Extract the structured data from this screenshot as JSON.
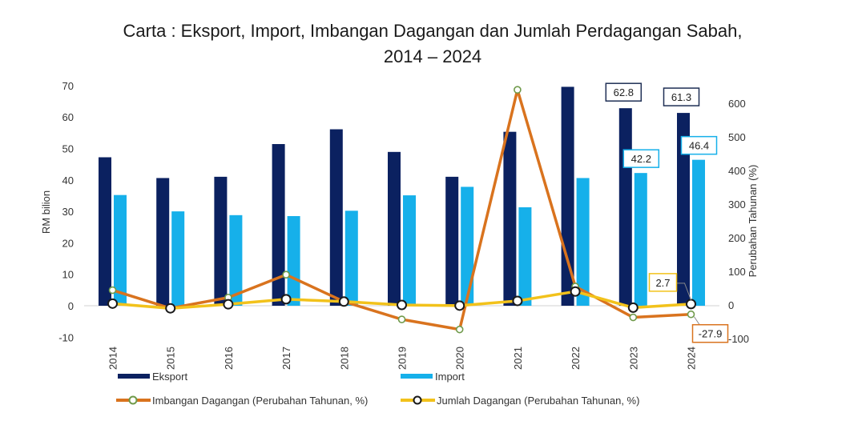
{
  "chart_data": {
    "type": "bar",
    "title": "Carta : Eksport, Import, Imbangan Dagangan dan Jumlah Perdagangan Sabah,",
    "subtitle": "2014 – 2024",
    "categories": [
      "2014",
      "2015",
      "2016",
      "2017",
      "2018",
      "2019",
      "2020",
      "2021",
      "2022",
      "2023",
      "2024"
    ],
    "ylabel": "RM bilion",
    "y2label": "Perubahan Tahunan (%)",
    "ylim": [
      -10,
      70
    ],
    "y2lim": [
      -100,
      650
    ],
    "yticks": [
      "70",
      "60",
      "50",
      "40",
      "30",
      "20",
      "10",
      "0",
      "-10"
    ],
    "y2ticks": [
      "600",
      "500",
      "400",
      "300",
      "200",
      "100",
      "0",
      "-100"
    ],
    "grid": false,
    "legend_position": "bottom",
    "series": [
      {
        "name": "Eksport",
        "kind": "bar",
        "axis": "left",
        "color": "#0b2160",
        "values": [
          47.2,
          40.6,
          41.0,
          51.4,
          56.1,
          48.9,
          41.0,
          55.3,
          69.6,
          62.8,
          61.3
        ],
        "labels": {
          "9": "62.8",
          "10": "61.3"
        }
      },
      {
        "name": "Import",
        "kind": "bar",
        "axis": "left",
        "color": "#16b0ea",
        "values": [
          35.2,
          30.0,
          28.8,
          28.5,
          30.2,
          35.1,
          37.8,
          31.3,
          40.6,
          42.2,
          46.4
        ],
        "labels": {
          "9": "42.2",
          "10": "46.4"
        }
      },
      {
        "name": "Imbangan Dagangan (Perubahan Tahunan, %)",
        "kind": "line",
        "axis": "right",
        "color": "#d9731e",
        "marker_edge": "#6f9a4a",
        "values": [
          44,
          -10,
          22,
          90,
          10,
          -43,
          -73,
          640,
          55,
          -37,
          -27.9
        ],
        "labels": {
          "10": "-27.9"
        }
      },
      {
        "name": "Jumlah Dagangan (Perubahan Tahunan, %)",
        "kind": "line",
        "axis": "right",
        "color": "#f2c21b",
        "marker_edge": "#1a1a1a",
        "values": [
          4,
          -10,
          2,
          17,
          10,
          0,
          -2,
          12,
          40,
          -8,
          2.7
        ],
        "labels": {
          "10": "2.7"
        }
      }
    ]
  }
}
